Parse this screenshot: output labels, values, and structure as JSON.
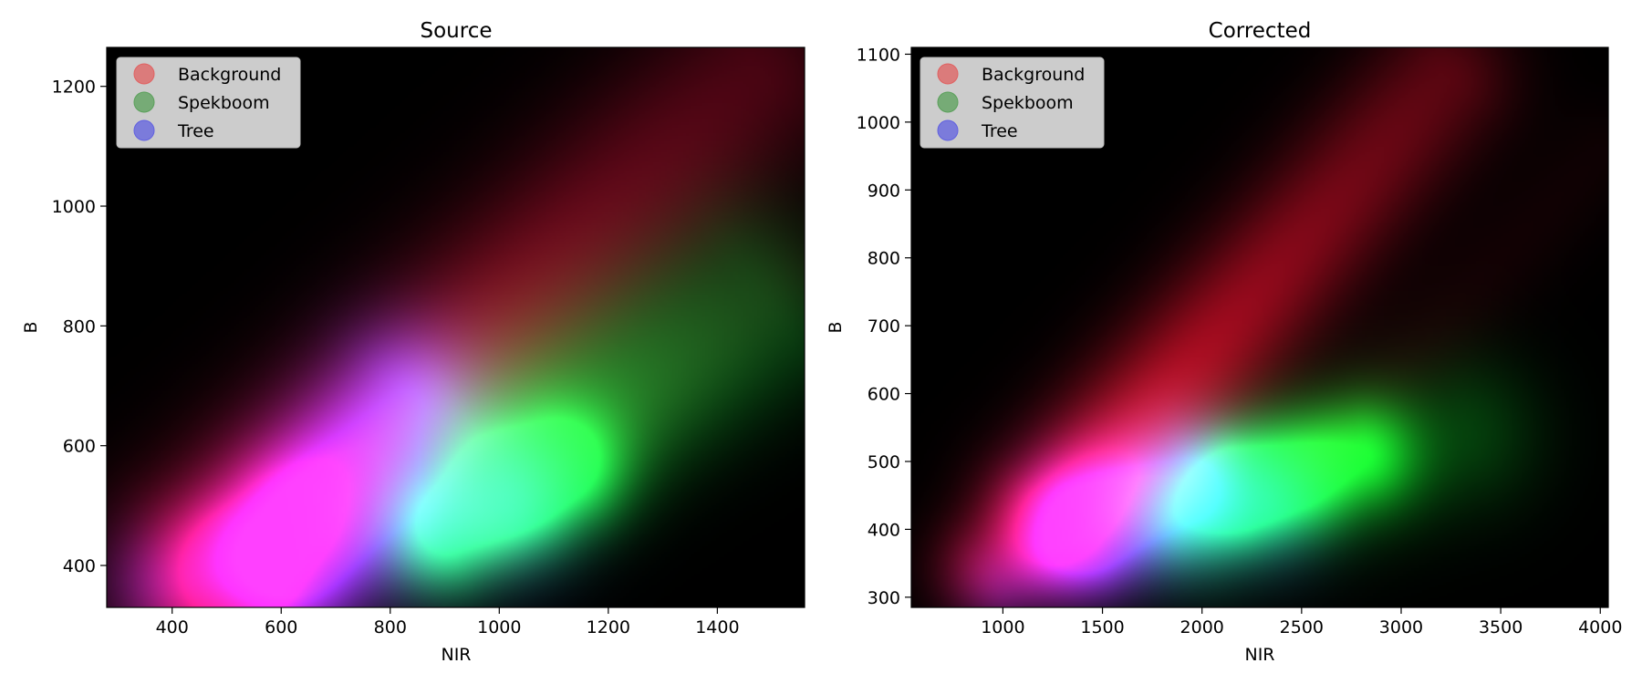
{
  "chart_data": [
    {
      "type": "heatmap",
      "title": "Source",
      "xlabel": "NIR",
      "ylabel": "B",
      "xlim": [
        280,
        1560
      ],
      "ylim": [
        330,
        1265
      ],
      "xticks": [
        400,
        600,
        800,
        1000,
        1200,
        1400
      ],
      "yticks": [
        400,
        600,
        800,
        1000,
        1200
      ],
      "legend": {
        "placement": "upper-left",
        "entries": [
          {
            "label": "Background",
            "color": "#e06060"
          },
          {
            "label": "Spekboom",
            "color": "#5aa05a"
          },
          {
            "label": "Tree",
            "color": "#6060e0"
          }
        ]
      },
      "series": [
        {
          "name": "Background",
          "color": "#ff1040",
          "blobs": [
            {
              "x0": 500,
              "y0": 385,
              "x1": 1460,
              "y1": 1210,
              "w": 75,
              "peak": 0.95,
              "decay": 1.2
            },
            {
              "x0": 540,
              "y0": 410,
              "x1": 600,
              "y1": 470,
              "w": 50,
              "peak": 0.55,
              "decay": 0.3
            },
            {
              "x0": 1000,
              "y0": 470,
              "x1": 1540,
              "y1": 880,
              "w": 40,
              "peak": 0.1,
              "decay": 0.5
            }
          ]
        },
        {
          "name": "Spekboom",
          "color": "#10ff40",
          "blobs": [
            {
              "x0": 900,
              "y0": 455,
              "x1": 1120,
              "y1": 560,
              "w": 45,
              "peak": 0.95,
              "decay": 0.2
            },
            {
              "x0": 960,
              "y0": 620,
              "x1": 1420,
              "y1": 880,
              "w": 65,
              "peak": 0.55,
              "decay": 0.9
            },
            {
              "x0": 1060,
              "y0": 540,
              "x1": 1520,
              "y1": 770,
              "w": 55,
              "peak": 0.4,
              "decay": 0.9
            }
          ]
        },
        {
          "name": "Tree",
          "color": "#3030ff",
          "blobs": [
            {
              "x0": 600,
              "y0": 420,
              "x1": 820,
              "y1": 680,
              "w": 55,
              "peak": 0.95,
              "decay": 0.2
            },
            {
              "x0": 700,
              "y0": 450,
              "x1": 1000,
              "y1": 500,
              "w": 60,
              "peak": 0.55,
              "decay": 0.2
            },
            {
              "x0": 380,
              "y0": 370,
              "x1": 600,
              "y1": 420,
              "w": 45,
              "peak": 0.35,
              "decay": 0.3
            }
          ]
        }
      ]
    },
    {
      "type": "heatmap",
      "title": "Corrected",
      "xlabel": "NIR",
      "ylabel": "B",
      "xlim": [
        540,
        4040
      ],
      "ylim": [
        285,
        1110
      ],
      "xticks": [
        1000,
        1500,
        2000,
        2500,
        3000,
        3500,
        4000
      ],
      "yticks": [
        300,
        400,
        500,
        600,
        700,
        800,
        900,
        1000,
        1100
      ],
      "legend": {
        "placement": "upper-left",
        "entries": [
          {
            "label": "Background",
            "color": "#e06060"
          },
          {
            "label": "Spekboom",
            "color": "#5aa05a"
          },
          {
            "label": "Tree",
            "color": "#6060e0"
          }
        ]
      },
      "series": [
        {
          "name": "Background",
          "color": "#ff1030",
          "blobs": [
            {
              "x0": 1300,
              "y0": 420,
              "x1": 3200,
              "y1": 1060,
              "w": 55,
              "peak": 0.95,
              "decay": 1.0
            },
            {
              "x0": 900,
              "y0": 340,
              "x1": 1400,
              "y1": 440,
              "w": 40,
              "peak": 0.4,
              "decay": 0.5
            },
            {
              "x0": 2600,
              "y0": 520,
              "x1": 4000,
              "y1": 950,
              "w": 40,
              "peak": 0.1,
              "decay": 0.6
            }
          ]
        },
        {
          "name": "Spekboom",
          "color": "#10ff30",
          "blobs": [
            {
              "x0": 2200,
              "y0": 470,
              "x1": 2800,
              "y1": 510,
              "w": 40,
              "peak": 0.95,
              "decay": 0.3
            },
            {
              "x0": 2000,
              "y0": 440,
              "x1": 3300,
              "y1": 540,
              "w": 60,
              "peak": 0.45,
              "decay": 0.6
            },
            {
              "x0": 1900,
              "y0": 410,
              "x1": 2500,
              "y1": 440,
              "w": 35,
              "peak": 0.3,
              "decay": 0.5
            }
          ]
        },
        {
          "name": "Tree",
          "color": "#4030ff",
          "blobs": [
            {
              "x0": 1400,
              "y0": 410,
              "x1": 1900,
              "y1": 480,
              "w": 45,
              "peak": 0.9,
              "decay": 0.3
            },
            {
              "x0": 1500,
              "y0": 400,
              "x1": 2300,
              "y1": 430,
              "w": 50,
              "peak": 0.55,
              "decay": 0.3
            },
            {
              "x0": 1000,
              "y0": 320,
              "x1": 1400,
              "y1": 380,
              "w": 35,
              "peak": 0.35,
              "decay": 0.3
            }
          ]
        }
      ]
    }
  ]
}
